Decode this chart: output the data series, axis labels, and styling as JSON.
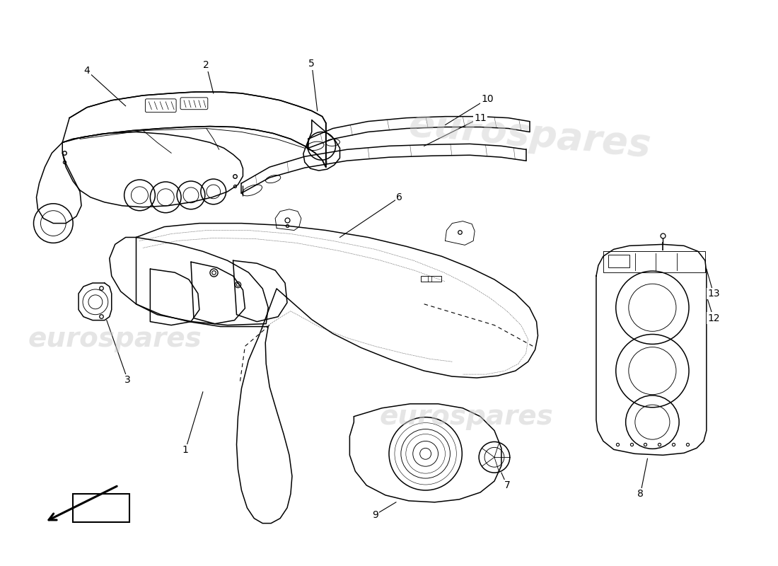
{
  "background_color": "#ffffff",
  "line_color": "#000000",
  "watermark_color": "#cccccc",
  "watermark_text": "eurospares",
  "label_fontsize": 9,
  "watermark_fontsize": 28,
  "lw_main": 1.1,
  "lw_thin": 0.65,
  "lw_seam": 0.5
}
